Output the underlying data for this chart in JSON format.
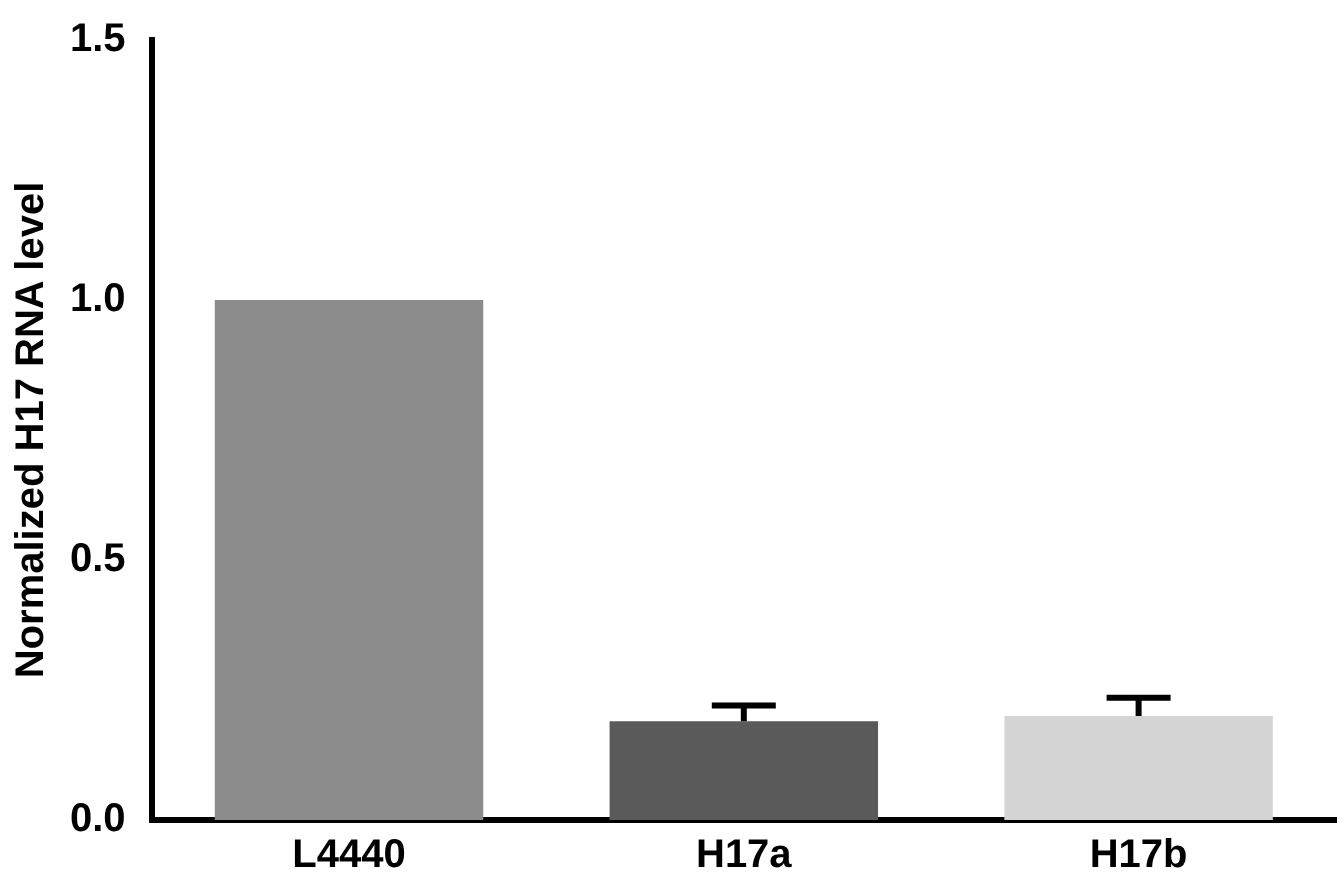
{
  "chart_data": {
    "type": "bar",
    "ylabel": "Normalized H17 RNA level",
    "categories": [
      "L4440",
      "H17a",
      "H17b"
    ],
    "values": [
      1.0,
      0.19,
      0.2
    ],
    "colors": [
      "#8c8c8c",
      "#5a5a5a",
      "#d4d4d4"
    ],
    "errors": [
      null,
      [
        0.19,
        0.22
      ],
      [
        0.2,
        0.235
      ]
    ],
    "ylim": [
      0,
      1.5
    ],
    "yticks": [
      {
        "value": 0,
        "label": "0.0"
      },
      {
        "value": 0.5,
        "label": "0.5"
      },
      {
        "value": 1,
        "label": "1.0"
      },
      {
        "value": 1.5,
        "label": "1.5"
      }
    ],
    "grid": false,
    "legend": false
  }
}
